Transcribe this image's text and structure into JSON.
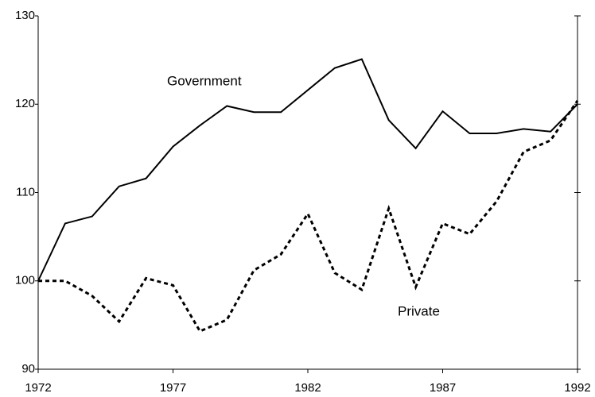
{
  "chart_data": {
    "type": "line",
    "x": [
      1972,
      1973,
      1974,
      1975,
      1976,
      1977,
      1978,
      1979,
      1980,
      1981,
      1982,
      1983,
      1984,
      1985,
      1986,
      1987,
      1988,
      1989,
      1990,
      1991,
      1992
    ],
    "series": [
      {
        "name": "Government",
        "color": "#000000",
        "linestyle": "solid",
        "values": [
          100,
          106.5,
          107.3,
          110.7,
          111.6,
          115.2,
          117.6,
          119.8,
          119.1,
          119.1,
          121.6,
          124.1,
          125.1,
          118.2,
          115.0,
          119.2,
          116.7,
          116.7,
          117.2,
          116.9,
          120.0
        ]
      },
      {
        "name": "Private",
        "color": "#000000",
        "linestyle": "dashed",
        "values": [
          100,
          100,
          98.3,
          95.4,
          100.3,
          99.5,
          94.3,
          95.6,
          101.2,
          103.0,
          107.6,
          100.9,
          99.0,
          108.2,
          99.3,
          106.5,
          105.3,
          109.0,
          114.6,
          115.9,
          120.4
        ]
      }
    ],
    "xlim": [
      1972,
      1992
    ],
    "xticks": [
      1972,
      1977,
      1982,
      1987,
      1992
    ],
    "ylim": [
      90,
      130
    ],
    "yticks": [
      90,
      100,
      110,
      120,
      130
    ],
    "grid": false
  }
}
